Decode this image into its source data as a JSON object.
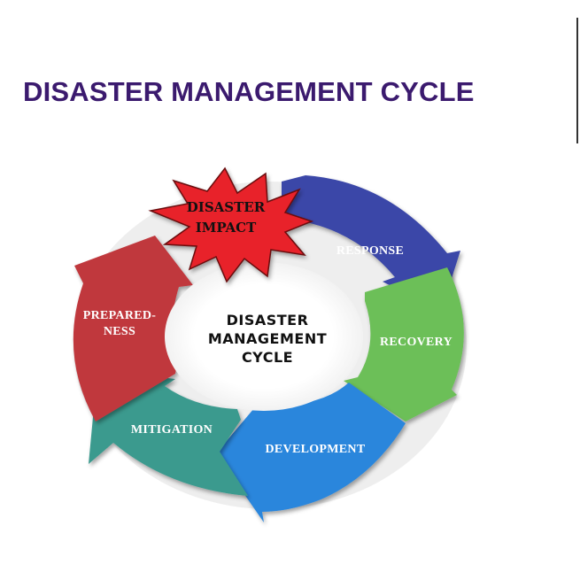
{
  "slide": {
    "title": "DISASTER MANAGEMENT CYCLE"
  },
  "diagram": {
    "center": [
      "DISASTER",
      "MANAGEMENT",
      "CYCLE"
    ],
    "impact": [
      "DISASTER",
      "IMPACT"
    ],
    "stages": {
      "response": "RESPONSE",
      "recovery": "RECOVERY",
      "development": "DEVELOPMENT",
      "mitigation": "MITIGATION",
      "preparedness": [
        "PREPARED-",
        "NESS"
      ]
    },
    "colors": {
      "title": "#3b1a6e",
      "response": "#3a47a8",
      "recovery": "#6cbf59",
      "development": "#2a86dc",
      "mitigation": "#3a9a8e",
      "preparedness": "#c0383e",
      "impact": "#e8202a"
    }
  }
}
